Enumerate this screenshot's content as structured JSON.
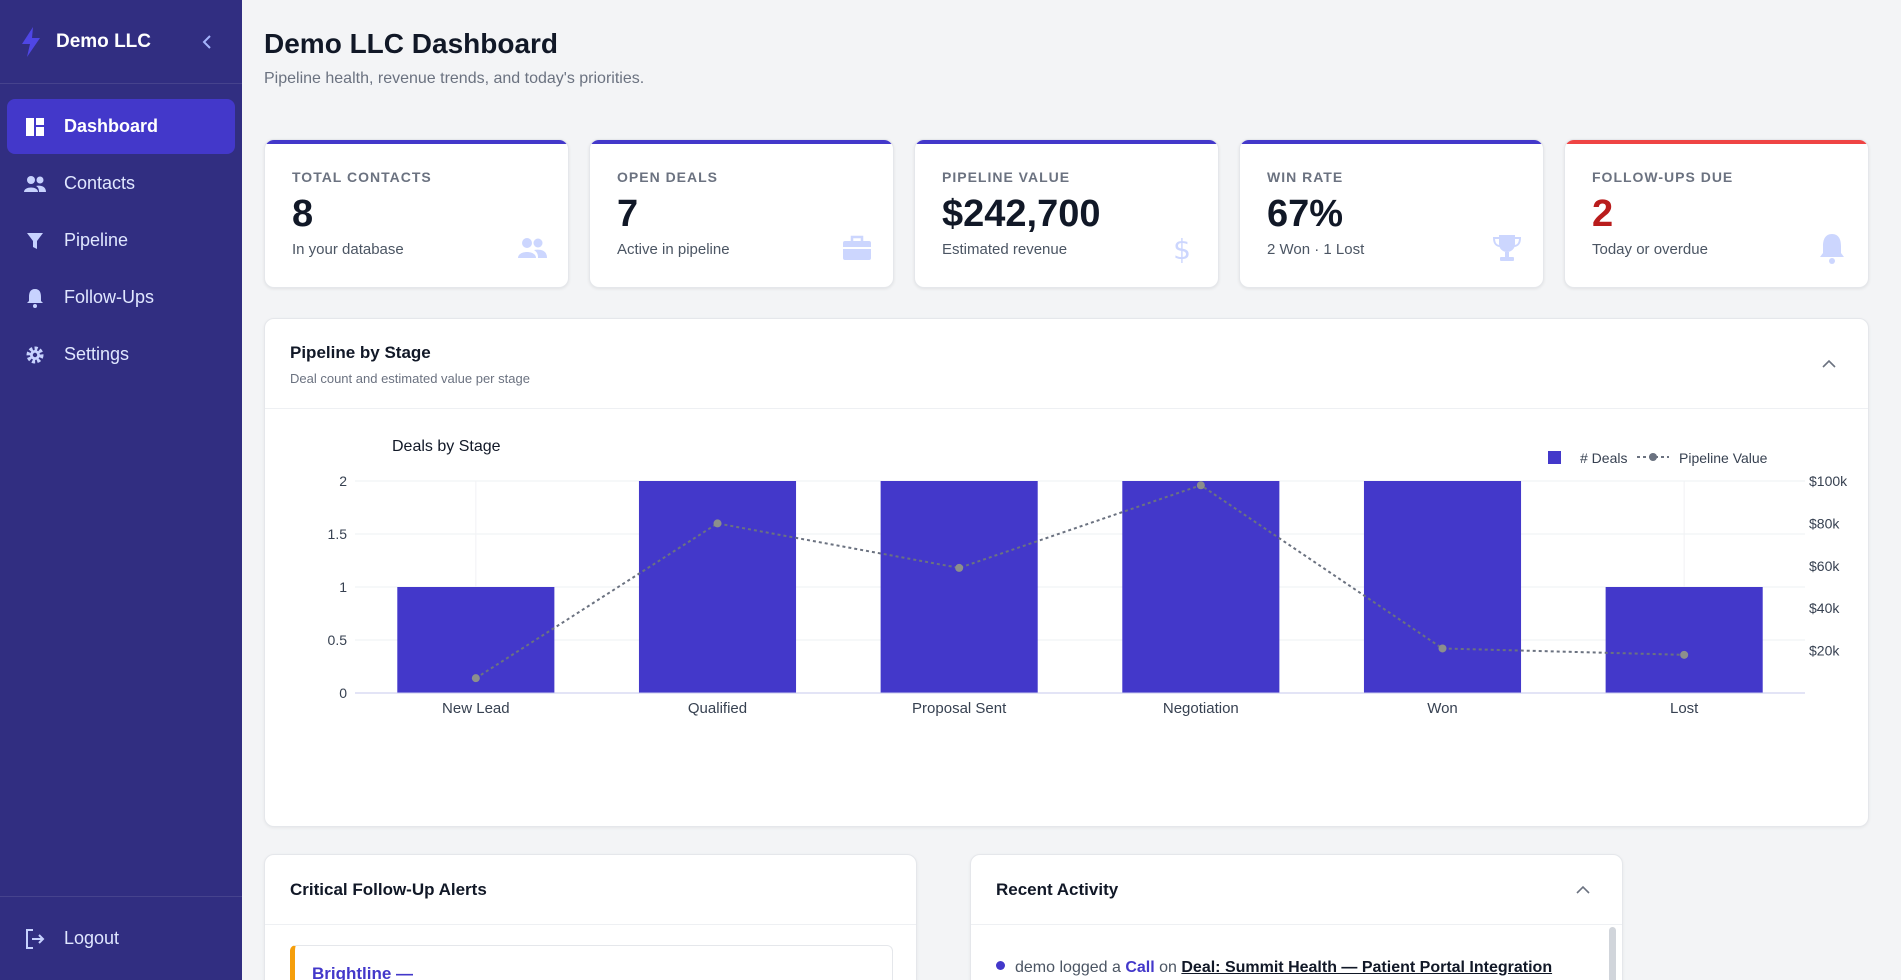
{
  "sidebar": {
    "brand": "Demo LLC",
    "items": [
      {
        "label": "Dashboard",
        "icon": "dashboard-icon",
        "active": true
      },
      {
        "label": "Contacts",
        "icon": "users-icon"
      },
      {
        "label": "Pipeline",
        "icon": "funnel-icon"
      },
      {
        "label": "Follow-Ups",
        "icon": "bell-icon"
      },
      {
        "label": "Settings",
        "icon": "gear-icon"
      }
    ],
    "logout": "Logout"
  },
  "header": {
    "title": "Demo LLC Dashboard",
    "subtitle": "Pipeline health, revenue trends, and today's priorities."
  },
  "stats": [
    {
      "label": "Total Contacts",
      "value": "8",
      "desc": "In your database",
      "icon": "users-icon"
    },
    {
      "label": "Open Deals",
      "value": "7",
      "desc": "Active in pipeline",
      "icon": "briefcase-icon"
    },
    {
      "label": "Pipeline Value",
      "value": "$242,700",
      "desc": "Estimated revenue",
      "icon": "dollar-icon"
    },
    {
      "label": "Win Rate",
      "value": "67%",
      "desc": "2 Won · 1 Lost",
      "icon": "trophy-icon"
    },
    {
      "label": "Follow-Ups Due",
      "value": "2",
      "desc": "Today or overdue",
      "icon": "bell-icon",
      "accent": "#ef4444"
    }
  ],
  "pipeline_panel": {
    "title": "Pipeline by Stage",
    "subtitle": "Deal count and estimated value per stage"
  },
  "chart_data": {
    "type": "bar",
    "title": "Deals by Stage",
    "categories": [
      "New Lead",
      "Qualified",
      "Proposal Sent",
      "Negotiation",
      "Won",
      "Lost"
    ],
    "series": [
      {
        "name": "# Deals",
        "type": "bar",
        "axis": "left",
        "color": "#4338ca",
        "values": [
          1,
          2,
          2,
          2,
          2,
          1
        ]
      },
      {
        "name": "Pipeline Value",
        "type": "line",
        "axis": "right",
        "color": "#6b7280",
        "values": [
          7000,
          80000,
          59000,
          98000,
          21000,
          18000
        ]
      }
    ],
    "y_left": {
      "ticks": [
        "0",
        "0.5",
        "1",
        "1.5",
        "2"
      ],
      "range": [
        0,
        2
      ]
    },
    "y_right": {
      "ticks": [
        "$20k",
        "$40k",
        "$60k",
        "$80k",
        "$100k"
      ],
      "range": [
        0,
        100000
      ]
    },
    "legend": "top-right",
    "grid": true
  },
  "alerts_panel": {
    "title": "Critical Follow-Up Alerts",
    "first_alert": "Brightline —"
  },
  "activity_panel": {
    "title": "Recent Activity",
    "row": {
      "user": "demo",
      "verb": "logged a",
      "type": "Call",
      "prep": "on",
      "link": "Deal: Summit Health — Patient Portal Integration"
    }
  },
  "colors": {
    "sidebar": "#312e81",
    "accent": "#4338ca",
    "danger": "#ef4444",
    "background": "#f3f4f6"
  }
}
